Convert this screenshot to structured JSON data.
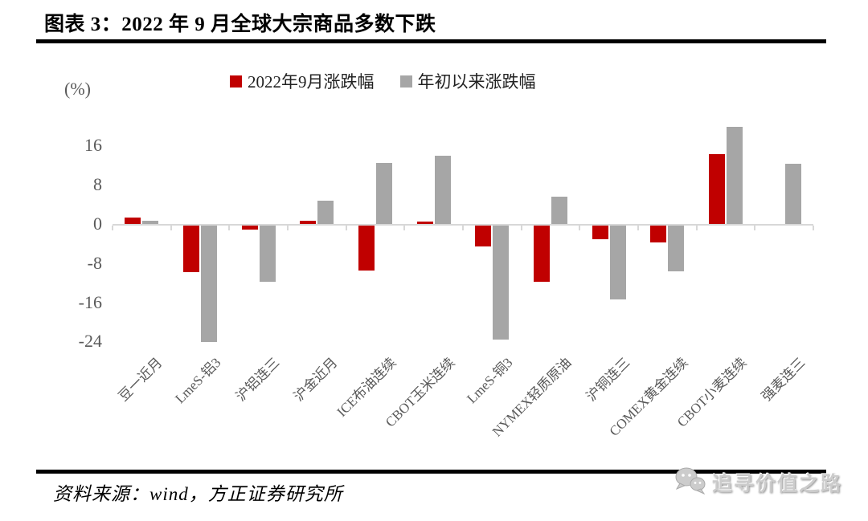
{
  "chart_data": {
    "type": "bar",
    "title": "图表 3：2022 年 9 月全球大宗商品多数下跌",
    "unit_label": "(%)",
    "categories": [
      "豆一近月",
      "LmeS-铝3",
      "沪铝连三",
      "沪金近月",
      "ICE布油连续",
      "CBOT玉米连续",
      "LmeS-铜3",
      "NYMEX轻质原油",
      "沪铜连三",
      "COMEX黄金连续",
      "CBOT小麦连续",
      "强麦连三"
    ],
    "series": [
      {
        "name": "2022年9月涨跌幅",
        "color": "#C00000",
        "values": [
          1.3,
          -9.5,
          -0.9,
          0.6,
          -9.1,
          0.5,
          -4.2,
          -11.4,
          -2.8,
          -3.4,
          14.3,
          0
        ]
      },
      {
        "name": "年初以来涨跌幅",
        "color": "#A6A6A6",
        "values": [
          0.6,
          -23.7,
          -11.5,
          4.8,
          12.5,
          13.9,
          -23.2,
          5.6,
          -15.0,
          -9.4,
          19.8,
          12.3
        ]
      }
    ],
    "y_ticks": [
      16,
      8,
      0,
      -8,
      -16,
      -24
    ],
    "ylim": [
      -26,
      22
    ],
    "grid": false,
    "legend_position": "top",
    "axis_color": "#D8D8D8",
    "tick_label_color": "#595959"
  },
  "footer": {
    "source_label": "资料来源：wind，方正证券研究所"
  },
  "watermark": {
    "text": "追寻价值之路",
    "icon": "wechat-chat-bubbles-icon"
  }
}
